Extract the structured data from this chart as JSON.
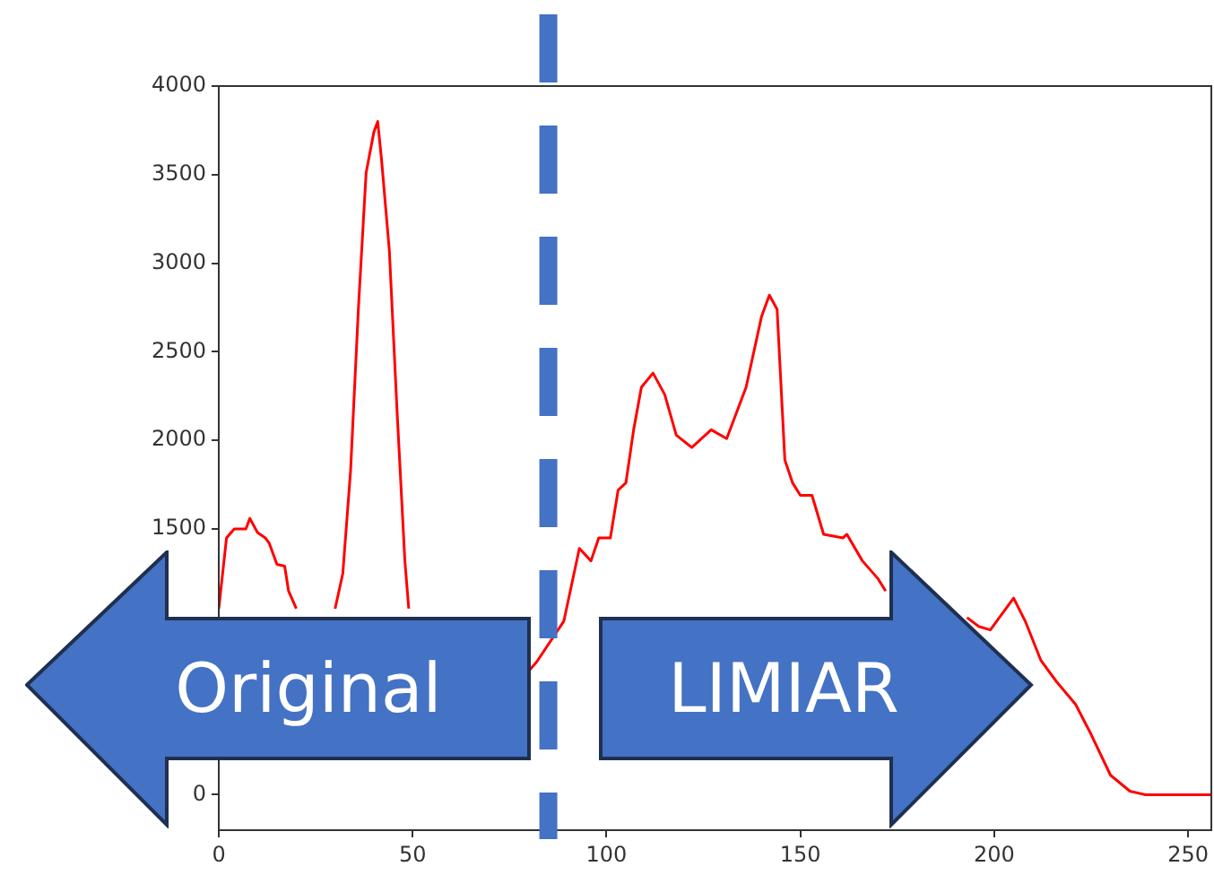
{
  "chart_data": {
    "type": "line",
    "x": [
      0,
      2,
      4,
      7,
      8,
      10,
      12,
      13,
      15,
      17,
      18,
      20,
      22,
      26,
      30,
      32,
      34,
      36,
      38,
      40,
      41,
      42,
      44,
      46,
      48,
      49,
      52,
      60,
      70,
      76,
      80,
      82,
      89,
      93,
      96,
      98,
      101,
      103,
      105,
      107,
      109,
      112,
      115,
      118,
      122,
      127,
      131,
      136,
      140,
      142,
      144,
      146,
      148,
      150,
      153,
      156,
      161,
      162,
      166,
      170,
      172,
      178,
      184,
      188,
      193,
      196,
      199,
      205,
      208,
      212,
      216,
      221,
      225,
      230,
      235,
      239,
      256
    ],
    "series": [
      {
        "color": "#ff0000",
        "values": [
          1050,
          1450,
          1500,
          1500,
          1560,
          1480,
          1450,
          1420,
          1300,
          1290,
          1150,
          1050,
          null,
          null,
          1050,
          1250,
          1830,
          2740,
          3510,
          3740,
          3800,
          3580,
          3070,
          2160,
          1320,
          1050,
          null,
          null,
          null,
          null,
          700,
          750,
          980,
          1390,
          1320,
          1450,
          1450,
          1720,
          1760,
          2060,
          2300,
          2380,
          2260,
          2030,
          1960,
          2060,
          2010,
          2300,
          2700,
          2820,
          2740,
          1890,
          1760,
          1690,
          1690,
          1470,
          1450,
          1470,
          1320,
          1220,
          1150,
          null,
          null,
          null,
          1000,
          950,
          930,
          1110,
          980,
          760,
          640,
          510,
          340,
          110,
          20,
          0,
          0
        ]
      }
    ],
    "xlim": [
      0,
      256
    ],
    "xticks": [
      0,
      50,
      100,
      150,
      200,
      250
    ],
    "ylim": [
      -200,
      4000
    ],
    "yticks": [
      0,
      1500,
      2000,
      2500,
      3000,
      3500,
      4000
    ],
    "grid": false,
    "marker": "none",
    "line_style": "solid",
    "legend": false,
    "ref_lines": [
      {
        "axis": "x",
        "value": 85,
        "color": "#4472c4",
        "line_style": "dashed"
      }
    ],
    "annotations": [
      "Original",
      "LIMIAR"
    ]
  }
}
